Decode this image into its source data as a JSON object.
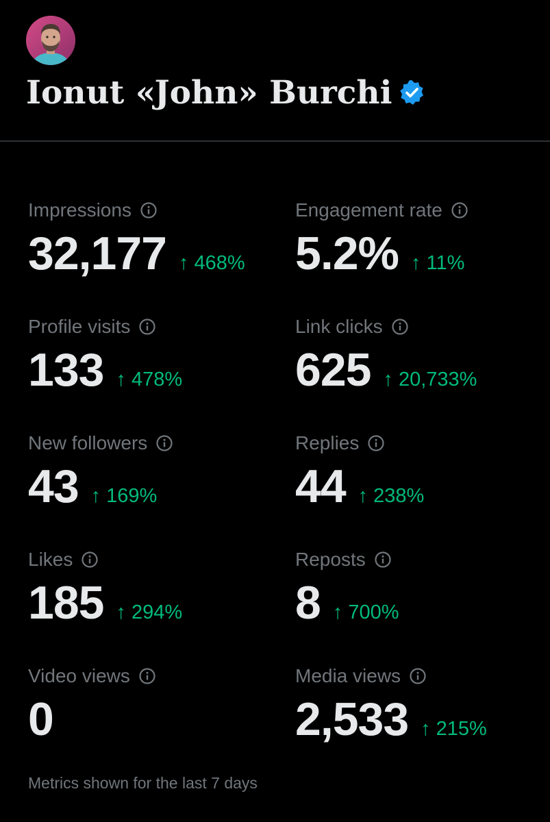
{
  "profile": {
    "name": "Ionut «John» Burchi",
    "verified": true,
    "avatar_icon": "avatar-photo",
    "verified_icon": "verified-badge-icon"
  },
  "colors": {
    "background": "#000000",
    "primary_text": "#e7e9ea",
    "secondary_text": "#71767b",
    "positive_change": "#00ba7c",
    "verified_blue": "#1d9bf0",
    "divider": "#2f3336"
  },
  "metrics": [
    {
      "label": "Impressions",
      "value": "32,177",
      "change": "468%",
      "direction": "up"
    },
    {
      "label": "Engagement rate",
      "value": "5.2%",
      "change": "11%",
      "direction": "up"
    },
    {
      "label": "Profile visits",
      "value": "133",
      "change": "478%",
      "direction": "up"
    },
    {
      "label": "Link clicks",
      "value": "625",
      "change": "20,733%",
      "direction": "up"
    },
    {
      "label": "New followers",
      "value": "43",
      "change": "169%",
      "direction": "up"
    },
    {
      "label": "Replies",
      "value": "44",
      "change": "238%",
      "direction": "up"
    },
    {
      "label": "Likes",
      "value": "185",
      "change": "294%",
      "direction": "up"
    },
    {
      "label": "Reposts",
      "value": "8",
      "change": "700%",
      "direction": "up"
    },
    {
      "label": "Video views",
      "value": "0",
      "change": "",
      "direction": ""
    },
    {
      "label": "Media views",
      "value": "2,533",
      "change": "215%",
      "direction": "up"
    }
  ],
  "footer": {
    "text": "Metrics shown for the last 7 days"
  }
}
